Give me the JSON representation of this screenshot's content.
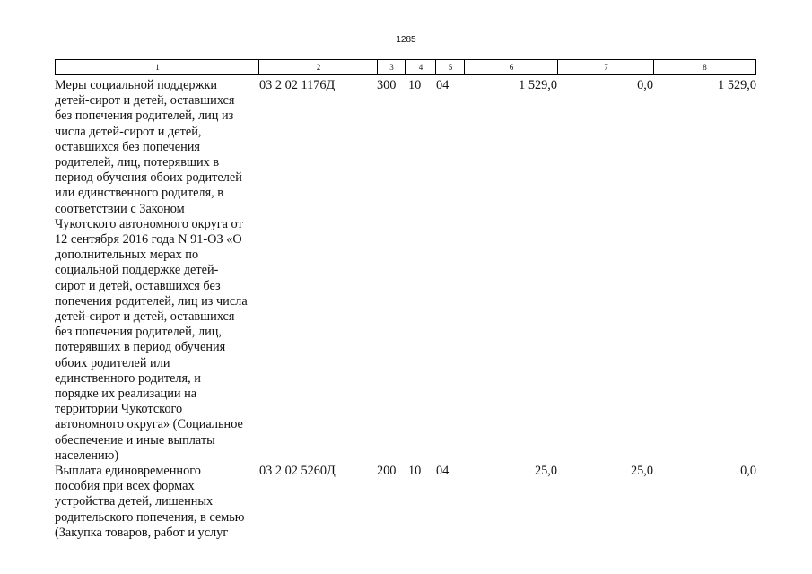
{
  "page_number": "1285",
  "table": {
    "header": [
      "1",
      "2",
      "3",
      "4",
      "5",
      "6",
      "7",
      "8"
    ],
    "rows": [
      {
        "description": [
          "Меры социальной поддержки",
          "детей-сирот и детей, оставшихся",
          "без попечения родителей, лиц из",
          "числа детей-сирот и детей,",
          "оставшихся без попечения",
          "родителей, лиц, потерявших в",
          "период обучения обоих родителей",
          "или единственного родителя, в",
          "соответствии с Законом",
          "Чукотского автономного округа от",
          "12 сентября 2016 года N 91-ОЗ «О",
          "дополнительных мерах по",
          "социальной поддержке детей-",
          "сирот и детей, оставшихся без",
          "попечения родителей, лиц из числа",
          "детей-сирот и детей, оставшихся",
          "без попечения родителей, лиц,",
          "потерявших в период обучения",
          "обоих родителей или",
          "единственного родителя, и",
          "порядке их реализации на",
          "территории Чукотского",
          "автономного округа» (Социальное",
          "обеспечение и иные выплаты",
          "населению)"
        ],
        "cells": [
          "03 2 02 1176Д",
          "300",
          "10",
          "04",
          "1 529,0",
          "0,0",
          "1 529,0"
        ]
      },
      {
        "description": [
          "Выплата единовременного",
          "пособия при всех формах",
          "устройства детей, лишенных",
          "родительского попечения, в семью",
          "(Закупка товаров, работ и услуг"
        ],
        "cells": [
          "03 2 02 5260Д",
          "200",
          "10",
          "04",
          "25,0",
          "25,0",
          "0,0"
        ]
      }
    ]
  }
}
